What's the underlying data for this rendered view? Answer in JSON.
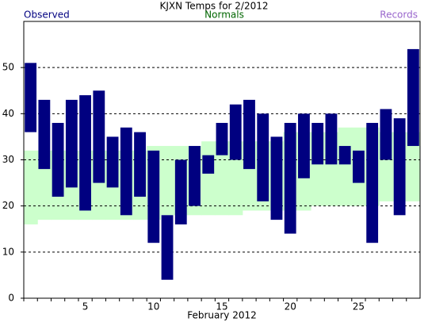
{
  "chart_data": {
    "type": "range-bar",
    "title": "KJXN Temps for 2/2012",
    "x_label": "February 2012",
    "x": [
      1,
      2,
      3,
      4,
      5,
      6,
      7,
      8,
      9,
      10,
      11,
      12,
      13,
      14,
      15,
      16,
      17,
      18,
      19,
      20,
      21,
      22,
      23,
      24,
      25,
      26,
      27,
      28,
      29
    ],
    "xlim": [
      0.5,
      29.5
    ],
    "xticks": [
      5,
      10,
      15,
      20,
      25
    ],
    "ylim": [
      0,
      60
    ],
    "yticks": [
      0,
      10,
      20,
      30,
      40,
      50
    ],
    "grid": true,
    "series": [
      {
        "name": "Observed",
        "color": "#000080",
        "high": [
          51,
          43,
          38,
          43,
          44,
          45,
          35,
          37,
          36,
          32,
          18,
          30,
          33,
          31,
          38,
          42,
          43,
          40,
          35,
          38,
          40,
          38,
          40,
          33,
          32,
          38,
          41,
          39,
          54
        ],
        "low": [
          36,
          28,
          22,
          24,
          19,
          25,
          24,
          18,
          22,
          12,
          4,
          16,
          20,
          27,
          31,
          30,
          28,
          21,
          17,
          14,
          26,
          29,
          29,
          29,
          25,
          12,
          30,
          18,
          33
        ]
      },
      {
        "name": "Normals",
        "color": "#006600",
        "fill": "#ccffcc",
        "high": [
          32,
          32,
          32,
          32,
          32,
          32,
          32,
          32,
          32,
          33,
          33,
          33,
          33,
          34,
          34,
          34,
          34,
          34,
          34,
          36,
          36,
          36,
          36,
          37,
          37,
          37,
          36,
          36,
          36
        ],
        "low": [
          16,
          17,
          17,
          17,
          17,
          17,
          17,
          17,
          17,
          17,
          18,
          18,
          18,
          18,
          18,
          18,
          19,
          19,
          19,
          19,
          19,
          20,
          20,
          20,
          20,
          20,
          21,
          21,
          21
        ]
      },
      {
        "name": "Records",
        "color": "#9966cc"
      }
    ]
  }
}
